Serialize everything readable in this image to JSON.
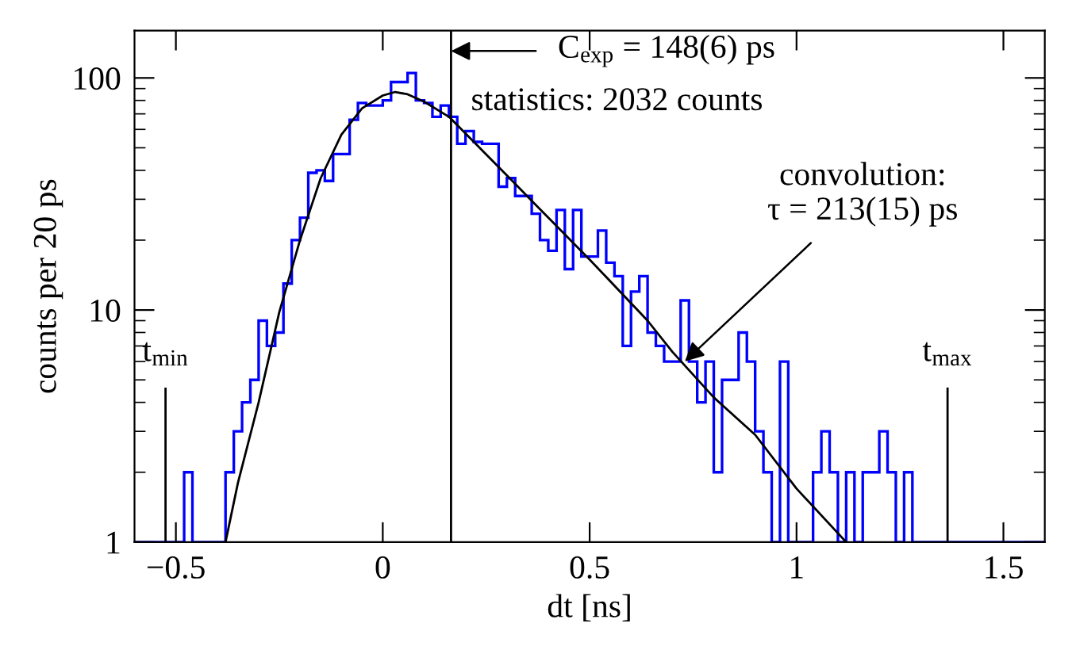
{
  "chart_data": {
    "type": "histogram",
    "xlabel": "dt [ns]",
    "ylabel": "counts per 20 ps",
    "log": "y",
    "xlim": [
      -0.6,
      1.6
    ],
    "ylim": [
      1,
      160
    ],
    "xticks": [
      {
        "value": -0.5,
        "label": "−0.5"
      },
      0,
      0.5,
      1,
      1.5
    ],
    "yticks": [
      1,
      10,
      100
    ],
    "grid": false,
    "legend": false,
    "series": [
      {
        "color": "#0000ff",
        "bins": [
          -0.6,
          -0.58,
          -0.56,
          -0.54,
          -0.52,
          -0.5,
          -0.48,
          -0.46,
          -0.44,
          -0.42,
          -0.4,
          -0.38,
          -0.36,
          -0.34,
          -0.32,
          -0.3,
          -0.28,
          -0.26,
          -0.24,
          -0.22,
          -0.2,
          -0.18,
          -0.16,
          -0.14,
          -0.12,
          -0.1,
          -0.08,
          -0.06,
          -0.04,
          -0.02,
          0,
          0.02,
          0.04,
          0.06,
          0.08,
          0.1,
          0.12,
          0.14,
          0.16,
          0.18,
          0.2,
          0.22,
          0.24,
          0.26,
          0.28,
          0.3,
          0.32,
          0.34,
          0.36,
          0.38,
          0.4,
          0.42,
          0.44,
          0.46,
          0.48,
          0.5,
          0.52,
          0.54,
          0.56,
          0.58,
          0.6,
          0.62,
          0.64,
          0.66,
          0.68,
          0.7,
          0.72,
          0.74,
          0.76,
          0.78,
          0.8,
          0.82,
          0.84,
          0.86,
          0.88,
          0.9,
          0.92,
          0.94,
          0.96,
          0.98,
          1,
          1.02,
          1.04,
          1.06,
          1.08,
          1.1,
          1.12,
          1.14,
          1.16,
          1.18,
          1.2,
          1.22,
          1.24,
          1.26,
          1.28,
          1.3,
          1.32,
          1.34,
          1.36,
          1.38,
          1.4,
          1.42,
          1.44,
          1.46,
          1.48,
          1.5,
          1.52,
          1.54,
          1.56,
          1.58,
          1.6
        ],
        "values": [
          1,
          1,
          1,
          1,
          1,
          1,
          2,
          1,
          1,
          1,
          1,
          2,
          3,
          4,
          5,
          9,
          7,
          8,
          13,
          20,
          25,
          39,
          40,
          36,
          47,
          47,
          66,
          78,
          76,
          76,
          80,
          96,
          96,
          105,
          80,
          78,
          68,
          76,
          68,
          52,
          59,
          53,
          52,
          52,
          34,
          37,
          31,
          31,
          26,
          20,
          18,
          27,
          15,
          27,
          17,
          17,
          22,
          16,
          14,
          7,
          12,
          14,
          8,
          7,
          6,
          6,
          11,
          6,
          4,
          6,
          2,
          5,
          5,
          8,
          6,
          3,
          2,
          1,
          6,
          1,
          1,
          1,
          2,
          3,
          2,
          1,
          2,
          1,
          2,
          2,
          3,
          2,
          1,
          2,
          1,
          1,
          1,
          1,
          1,
          1,
          1,
          1,
          1,
          1,
          1,
          1,
          1,
          1,
          1,
          1
        ]
      },
      {
        "type": "line",
        "color": "#000000",
        "x": [
          -0.38,
          -0.35,
          -0.3,
          -0.25,
          -0.2,
          -0.15,
          -0.1,
          -0.05,
          0,
          0.03,
          0.06,
          0.1,
          0.16,
          0.3,
          0.4,
          0.5,
          0.64,
          0.7,
          0.8,
          0.9,
          1.0,
          1.12
        ],
        "values": [
          1,
          1.8,
          4,
          9.8,
          20,
          37,
          57,
          74,
          84,
          87,
          85,
          79,
          68,
          38,
          25,
          16.5,
          9,
          6.6,
          4.2,
          2.9,
          1.7,
          1
        ]
      }
    ],
    "ref_lines": [
      {
        "axis": "x",
        "value": 0.165,
        "color": "#000000",
        "line_style": "solid"
      },
      {
        "axis": "x",
        "value": -0.525,
        "label": "t$_{min}$",
        "color": "#000000",
        "line_style": "solid"
      },
      {
        "axis": "x",
        "value": 1.365,
        "label": "t$_{max}$",
        "color": "#000000",
        "line_style": "solid"
      }
    ],
    "annotations": [
      "C$_{exp}$ = 148(6) ps",
      "statistics: 2032 counts",
      {
        "text": "convolution:\nτ = 213(15) ps",
        "x": 0.73,
        "y": 6
      }
    ]
  }
}
